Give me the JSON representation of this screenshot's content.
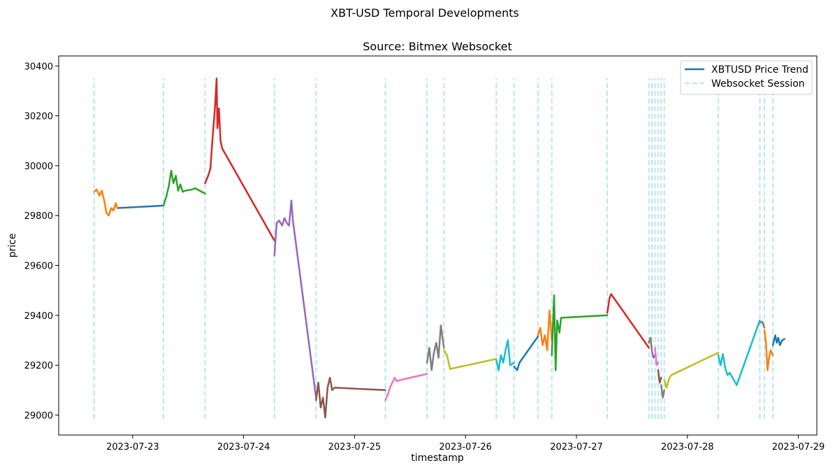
{
  "chart_data": {
    "type": "line",
    "suptitle": "XBT-USD Temporal Developments",
    "title": "Source: Bitmex Websocket",
    "xlabel": "timestamp",
    "ylabel": "price",
    "xlim": [
      "2023-07-22T08:00",
      "2023-07-29T04:00"
    ],
    "ylim": [
      28920,
      30440
    ],
    "x_ticks": [
      "2023-07-23",
      "2023-07-24",
      "2023-07-25",
      "2023-07-26",
      "2023-07-27",
      "2023-07-28",
      "2023-07-29"
    ],
    "y_ticks": [
      29000,
      29200,
      29400,
      29600,
      29800,
      30000,
      30200,
      30400
    ],
    "legend": {
      "position": "top-right",
      "entries": [
        {
          "label": "XBTUSD Price Trend",
          "style": "solid",
          "color": "#1f77b4"
        },
        {
          "label": "Websocket Session",
          "style": "dashed",
          "color": "#b8e6ea"
        }
      ]
    },
    "session_line_range": [
      28985,
      30350
    ],
    "session_starts": [
      "2023-07-22T15:40",
      "2023-07-23T06:40",
      "2023-07-23T15:40",
      "2023-07-24T06:40",
      "2023-07-24T15:40",
      "2023-07-25T06:40",
      "2023-07-25T15:40",
      "2023-07-25T19:20",
      "2023-07-26T06:40",
      "2023-07-26T10:30",
      "2023-07-26T15:40",
      "2023-07-26T18:40",
      "2023-07-27T06:40",
      "2023-07-27T15:40",
      "2023-07-27T16:20",
      "2023-07-27T17:00",
      "2023-07-27T17:40",
      "2023-07-27T18:20",
      "2023-07-27T19:00",
      "2023-07-28T06:40",
      "2023-07-28T15:40",
      "2023-07-28T16:40",
      "2023-07-28T18:30"
    ],
    "series": [
      {
        "color": "#1f77b4",
        "points": [
          [
            "2023-07-22T20:40",
            29830
          ],
          [
            "2023-07-23T04:30",
            29838
          ],
          [
            "2023-07-23T06:40",
            29840
          ]
        ]
      },
      {
        "color": "#ff7f0e",
        "points": [
          [
            "2023-07-22T15:40",
            29895
          ],
          [
            "2023-07-22T16:10",
            29905
          ],
          [
            "2023-07-22T16:50",
            29880
          ],
          [
            "2023-07-22T17:20",
            29900
          ],
          [
            "2023-07-22T17:50",
            29860
          ],
          [
            "2023-07-22T18:20",
            29810
          ],
          [
            "2023-07-22T18:50",
            29800
          ],
          [
            "2023-07-22T19:20",
            29830
          ],
          [
            "2023-07-22T19:50",
            29820
          ],
          [
            "2023-07-22T20:20",
            29850
          ],
          [
            "2023-07-22T20:40",
            29830
          ]
        ]
      },
      {
        "color": "#2ca02c",
        "points": [
          [
            "2023-07-23T06:40",
            29840
          ],
          [
            "2023-07-23T07:20",
            29880
          ],
          [
            "2023-07-23T07:50",
            29920
          ],
          [
            "2023-07-23T08:20",
            29980
          ],
          [
            "2023-07-23T08:50",
            29930
          ],
          [
            "2023-07-23T09:20",
            29960
          ],
          [
            "2023-07-23T09:50",
            29900
          ],
          [
            "2023-07-23T10:20",
            29925
          ],
          [
            "2023-07-23T10:50",
            29895
          ],
          [
            "2023-07-23T11:20",
            29900
          ],
          [
            "2023-07-23T13:00",
            29905
          ],
          [
            "2023-07-23T13:30",
            29910
          ],
          [
            "2023-07-23T14:30",
            29900
          ],
          [
            "2023-07-23T15:40",
            29888
          ]
        ]
      },
      {
        "color": "#d62728",
        "points": [
          [
            "2023-07-23T15:40",
            29930
          ],
          [
            "2023-07-23T16:20",
            29960
          ],
          [
            "2023-07-23T16:50",
            29990
          ],
          [
            "2023-07-23T17:10",
            30080
          ],
          [
            "2023-07-23T17:30",
            30160
          ],
          [
            "2023-07-23T17:50",
            30240
          ],
          [
            "2023-07-23T18:10",
            30350
          ],
          [
            "2023-07-23T18:20",
            30150
          ],
          [
            "2023-07-23T18:40",
            30230
          ],
          [
            "2023-07-23T19:00",
            30100
          ],
          [
            "2023-07-23T19:20",
            30070
          ],
          [
            "2023-07-24T06:40",
            29700
          ]
        ]
      },
      {
        "color": "#9467bd",
        "points": [
          [
            "2023-07-24T06:40",
            29640
          ],
          [
            "2023-07-24T07:10",
            29770
          ],
          [
            "2023-07-24T07:40",
            29780
          ],
          [
            "2023-07-24T08:20",
            29760
          ],
          [
            "2023-07-24T08:50",
            29790
          ],
          [
            "2023-07-24T09:20",
            29770
          ],
          [
            "2023-07-24T09:50",
            29760
          ],
          [
            "2023-07-24T10:20",
            29860
          ],
          [
            "2023-07-24T10:40",
            29780
          ],
          [
            "2023-07-24T15:40",
            29070
          ]
        ]
      },
      {
        "color": "#8c564b",
        "points": [
          [
            "2023-07-24T15:40",
            29060
          ],
          [
            "2023-07-24T16:10",
            29130
          ],
          [
            "2023-07-24T16:40",
            29030
          ],
          [
            "2023-07-24T17:10",
            29070
          ],
          [
            "2023-07-24T17:40",
            28990
          ],
          [
            "2023-07-24T18:10",
            29110
          ],
          [
            "2023-07-24T18:40",
            29150
          ],
          [
            "2023-07-24T19:10",
            29100
          ],
          [
            "2023-07-24T19:40",
            29110
          ],
          [
            "2023-07-25T06:40",
            29100
          ]
        ]
      },
      {
        "color": "#e377c2",
        "points": [
          [
            "2023-07-25T06:40",
            29060
          ],
          [
            "2023-07-25T07:10",
            29080
          ],
          [
            "2023-07-25T07:40",
            29110
          ],
          [
            "2023-07-25T08:10",
            29130
          ],
          [
            "2023-07-25T08:40",
            29150
          ],
          [
            "2023-07-25T09:10",
            29135
          ],
          [
            "2023-07-25T09:40",
            29140
          ],
          [
            "2023-07-25T15:40",
            29165
          ]
        ]
      },
      {
        "color": "#7f7f7f",
        "points": [
          [
            "2023-07-25T15:40",
            29210
          ],
          [
            "2023-07-25T16:10",
            29270
          ],
          [
            "2023-07-25T16:40",
            29180
          ],
          [
            "2023-07-25T17:10",
            29250
          ],
          [
            "2023-07-25T17:40",
            29290
          ],
          [
            "2023-07-25T18:10",
            29230
          ],
          [
            "2023-07-25T18:40",
            29360
          ],
          [
            "2023-07-25T19:20",
            29270
          ]
        ]
      },
      {
        "color": "#bcbd22",
        "points": [
          [
            "2023-07-25T19:20",
            29260
          ],
          [
            "2023-07-25T20:00",
            29240
          ],
          [
            "2023-07-25T20:40",
            29185
          ],
          [
            "2023-07-26T06:40",
            29225
          ]
        ]
      },
      {
        "color": "#17becf",
        "points": [
          [
            "2023-07-26T06:40",
            29220
          ],
          [
            "2023-07-26T07:10",
            29180
          ],
          [
            "2023-07-26T07:40",
            29240
          ],
          [
            "2023-07-26T08:10",
            29210
          ],
          [
            "2023-07-26T08:40",
            29260
          ],
          [
            "2023-07-26T09:10",
            29300
          ],
          [
            "2023-07-26T09:40",
            29200
          ],
          [
            "2023-07-26T10:30",
            29210
          ]
        ]
      },
      {
        "color": "#1f77b4",
        "points": [
          [
            "2023-07-26T10:30",
            29195
          ],
          [
            "2023-07-26T11:10",
            29180
          ],
          [
            "2023-07-26T11:40",
            29210
          ],
          [
            "2023-07-26T15:40",
            29315
          ]
        ]
      },
      {
        "color": "#ff7f0e",
        "points": [
          [
            "2023-07-26T15:40",
            29320
          ],
          [
            "2023-07-26T16:10",
            29350
          ],
          [
            "2023-07-26T16:40",
            29280
          ],
          [
            "2023-07-26T17:10",
            29320
          ],
          [
            "2023-07-26T17:40",
            29260
          ],
          [
            "2023-07-26T18:10",
            29420
          ],
          [
            "2023-07-26T18:40",
            29300
          ]
        ]
      },
      {
        "color": "#2ca02c",
        "points": [
          [
            "2023-07-26T18:40",
            29240
          ],
          [
            "2023-07-26T19:10",
            29480
          ],
          [
            "2023-07-26T19:30",
            29180
          ],
          [
            "2023-07-26T19:50",
            29380
          ],
          [
            "2023-07-26T20:20",
            29330
          ],
          [
            "2023-07-26T20:40",
            29390
          ],
          [
            "2023-07-27T06:40",
            29400
          ]
        ]
      },
      {
        "color": "#d62728",
        "points": [
          [
            "2023-07-27T06:40",
            29410
          ],
          [
            "2023-07-27T07:10",
            29470
          ],
          [
            "2023-07-27T07:30",
            29485
          ],
          [
            "2023-07-27T15:40",
            29270
          ]
        ]
      },
      {
        "color": "#7f7f7f",
        "points": [
          [
            "2023-07-27T15:40",
            29290
          ],
          [
            "2023-07-27T16:00",
            29310
          ],
          [
            "2023-07-27T16:20",
            29260
          ]
        ]
      },
      {
        "color": "#9467bd",
        "points": [
          [
            "2023-07-27T16:20",
            29255
          ],
          [
            "2023-07-27T16:40",
            29230
          ],
          [
            "2023-07-27T17:00",
            29240
          ]
        ]
      },
      {
        "color": "#e377c2",
        "points": [
          [
            "2023-07-27T17:00",
            29270
          ],
          [
            "2023-07-27T17:20",
            29200
          ],
          [
            "2023-07-27T17:40",
            29210
          ]
        ]
      },
      {
        "color": "#8c564b",
        "points": [
          [
            "2023-07-27T17:40",
            29180
          ],
          [
            "2023-07-27T18:00",
            29130
          ],
          [
            "2023-07-27T18:20",
            29150
          ]
        ]
      },
      {
        "color": "#7f7f7f",
        "points": [
          [
            "2023-07-27T18:20",
            29120
          ],
          [
            "2023-07-27T18:40",
            29070
          ],
          [
            "2023-07-27T19:00",
            29100
          ]
        ]
      },
      {
        "color": "#bcbd22",
        "points": [
          [
            "2023-07-27T19:00",
            29140
          ],
          [
            "2023-07-27T19:30",
            29110
          ],
          [
            "2023-07-27T20:00",
            29145
          ],
          [
            "2023-07-27T20:30",
            29160
          ],
          [
            "2023-07-28T06:40",
            29250
          ]
        ]
      },
      {
        "color": "#17becf",
        "points": [
          [
            "2023-07-28T06:40",
            29240
          ],
          [
            "2023-07-28T07:10",
            29200
          ],
          [
            "2023-07-28T07:40",
            29245
          ],
          [
            "2023-07-28T08:10",
            29190
          ],
          [
            "2023-07-28T08:40",
            29160
          ],
          [
            "2023-07-28T09:10",
            29170
          ],
          [
            "2023-07-28T10:40",
            29120
          ],
          [
            "2023-07-28T15:40",
            29380
          ]
        ]
      },
      {
        "color": "#7f7f7f",
        "points": [
          [
            "2023-07-28T15:40",
            29370
          ],
          [
            "2023-07-28T16:10",
            29375
          ],
          [
            "2023-07-28T16:40",
            29350
          ]
        ]
      },
      {
        "color": "#ff7f0e",
        "points": [
          [
            "2023-07-28T16:40",
            29340
          ],
          [
            "2023-07-28T17:00",
            29290
          ],
          [
            "2023-07-28T17:20",
            29180
          ],
          [
            "2023-07-28T17:40",
            29230
          ],
          [
            "2023-07-28T18:00",
            29260
          ],
          [
            "2023-07-28T18:30",
            29240
          ]
        ]
      },
      {
        "color": "#1f77b4",
        "points": [
          [
            "2023-07-28T18:30",
            29280
          ],
          [
            "2023-07-28T19:00",
            29320
          ],
          [
            "2023-07-28T19:20",
            29290
          ],
          [
            "2023-07-28T19:40",
            29310
          ],
          [
            "2023-07-28T20:00",
            29280
          ],
          [
            "2023-07-28T20:30",
            29300
          ],
          [
            "2023-07-28T21:00",
            29305
          ]
        ]
      }
    ]
  }
}
